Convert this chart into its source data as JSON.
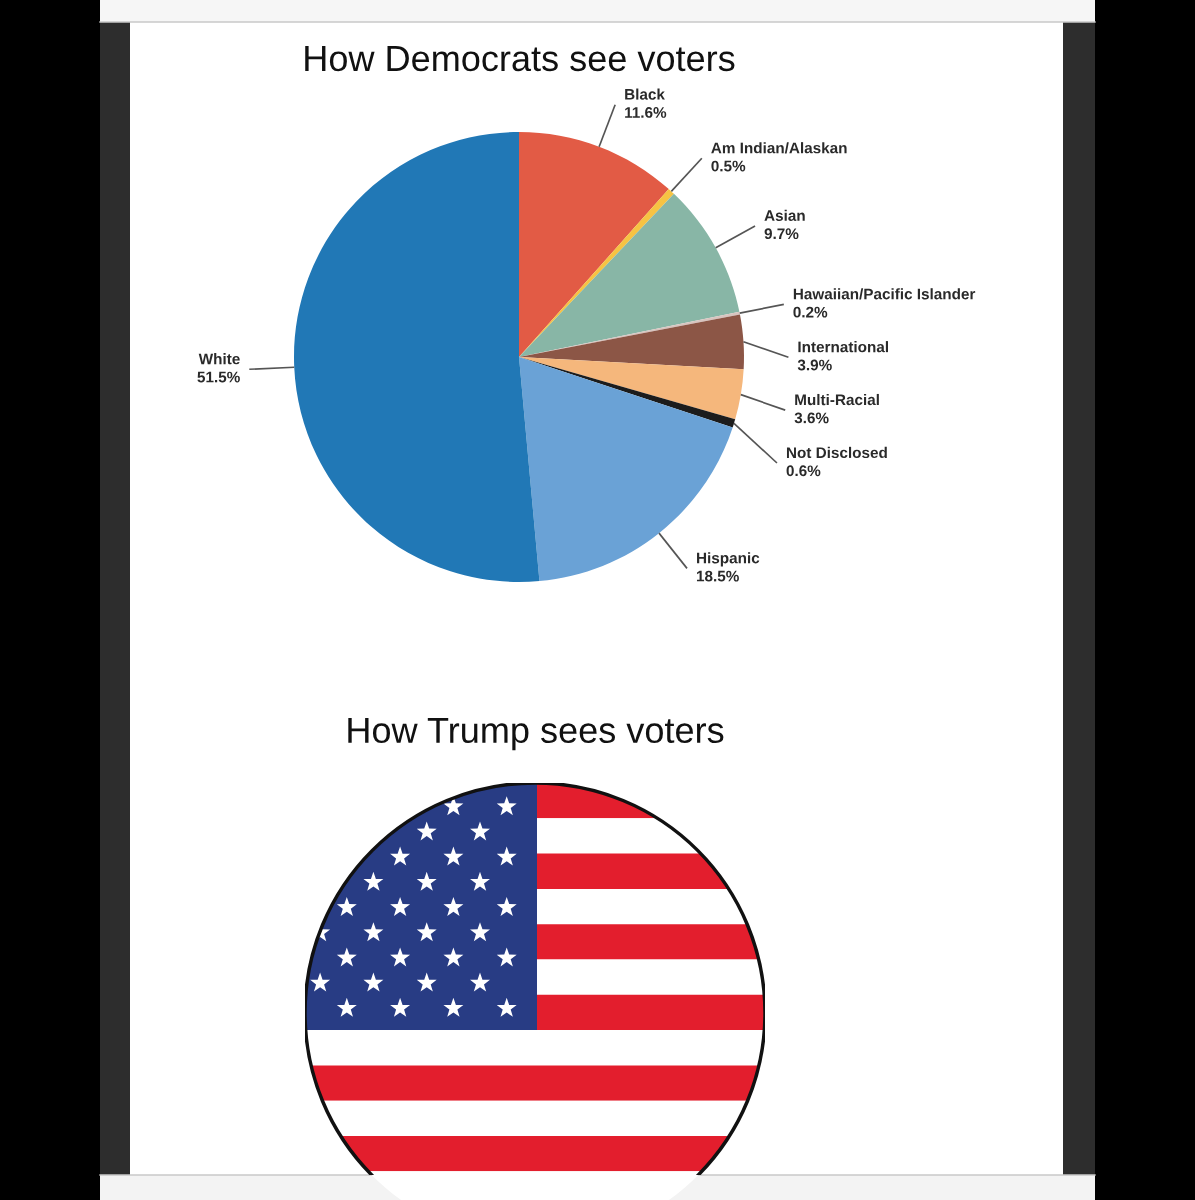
{
  "chart_data": [
    {
      "type": "pie",
      "title": "How Democrats see voters",
      "categories": [
        "Black",
        "Am Indian/Alaskan",
        "Asian",
        "Hawaiian/Pacific Islander",
        "International",
        "Multi-Racial",
        "Not Disclosed",
        "Hispanic",
        "White"
      ],
      "values": [
        11.6,
        0.5,
        9.7,
        0.2,
        3.9,
        3.6,
        0.6,
        18.5,
        51.5
      ],
      "colors": [
        "#e25b45",
        "#f6c343",
        "#88b6a6",
        "#d8c4bf",
        "#8c5646",
        "#f5b77c",
        "#1c1c1c",
        "#6aa2d6",
        "#2178b6"
      ],
      "value_labels": [
        "11.6%",
        "0.5%",
        "9.7%",
        "0.2%",
        "3.9%",
        "3.6%",
        "0.6%",
        "18.5%",
        "51.5%"
      ]
    },
    {
      "type": "other",
      "title": "How Trump sees voters"
    }
  ]
}
